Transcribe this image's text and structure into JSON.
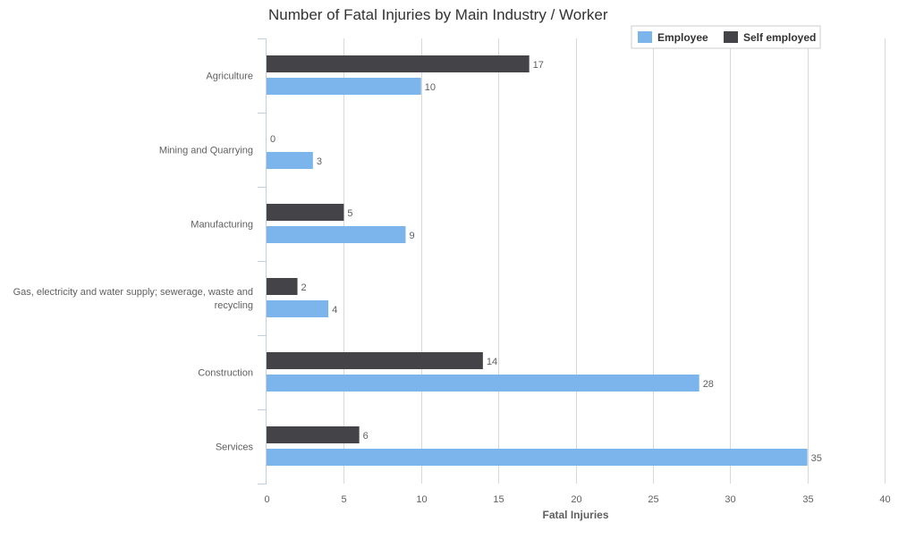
{
  "chart_data": {
    "type": "bar",
    "orientation": "horizontal",
    "title": "Number of Fatal Injuries by Main Industry / Worker",
    "xlabel": "Fatal Injuries",
    "ylabel": "",
    "xlim": [
      0,
      40
    ],
    "x_ticks": [
      "0",
      "5",
      "10",
      "15",
      "20",
      "25",
      "30",
      "35",
      "40"
    ],
    "categories": [
      [
        "Agriculture"
      ],
      [
        "Mining and Quarrying"
      ],
      [
        "Manufacturing"
      ],
      [
        "Gas, electricity and water supply; sewerage, waste and",
        "recycling"
      ],
      [
        "Construction"
      ],
      [
        "Services"
      ]
    ],
    "series": [
      {
        "name": "Self employed",
        "color": "#434348",
        "values": [
          17,
          0,
          5,
          2,
          14,
          6
        ]
      },
      {
        "name": "Employee",
        "color": "#7cb5ec",
        "values": [
          10,
          3,
          9,
          4,
          28,
          35
        ]
      }
    ],
    "legend": {
      "placement": "top-right",
      "items": [
        "Employee",
        "Self employed"
      ]
    },
    "grid": true
  }
}
